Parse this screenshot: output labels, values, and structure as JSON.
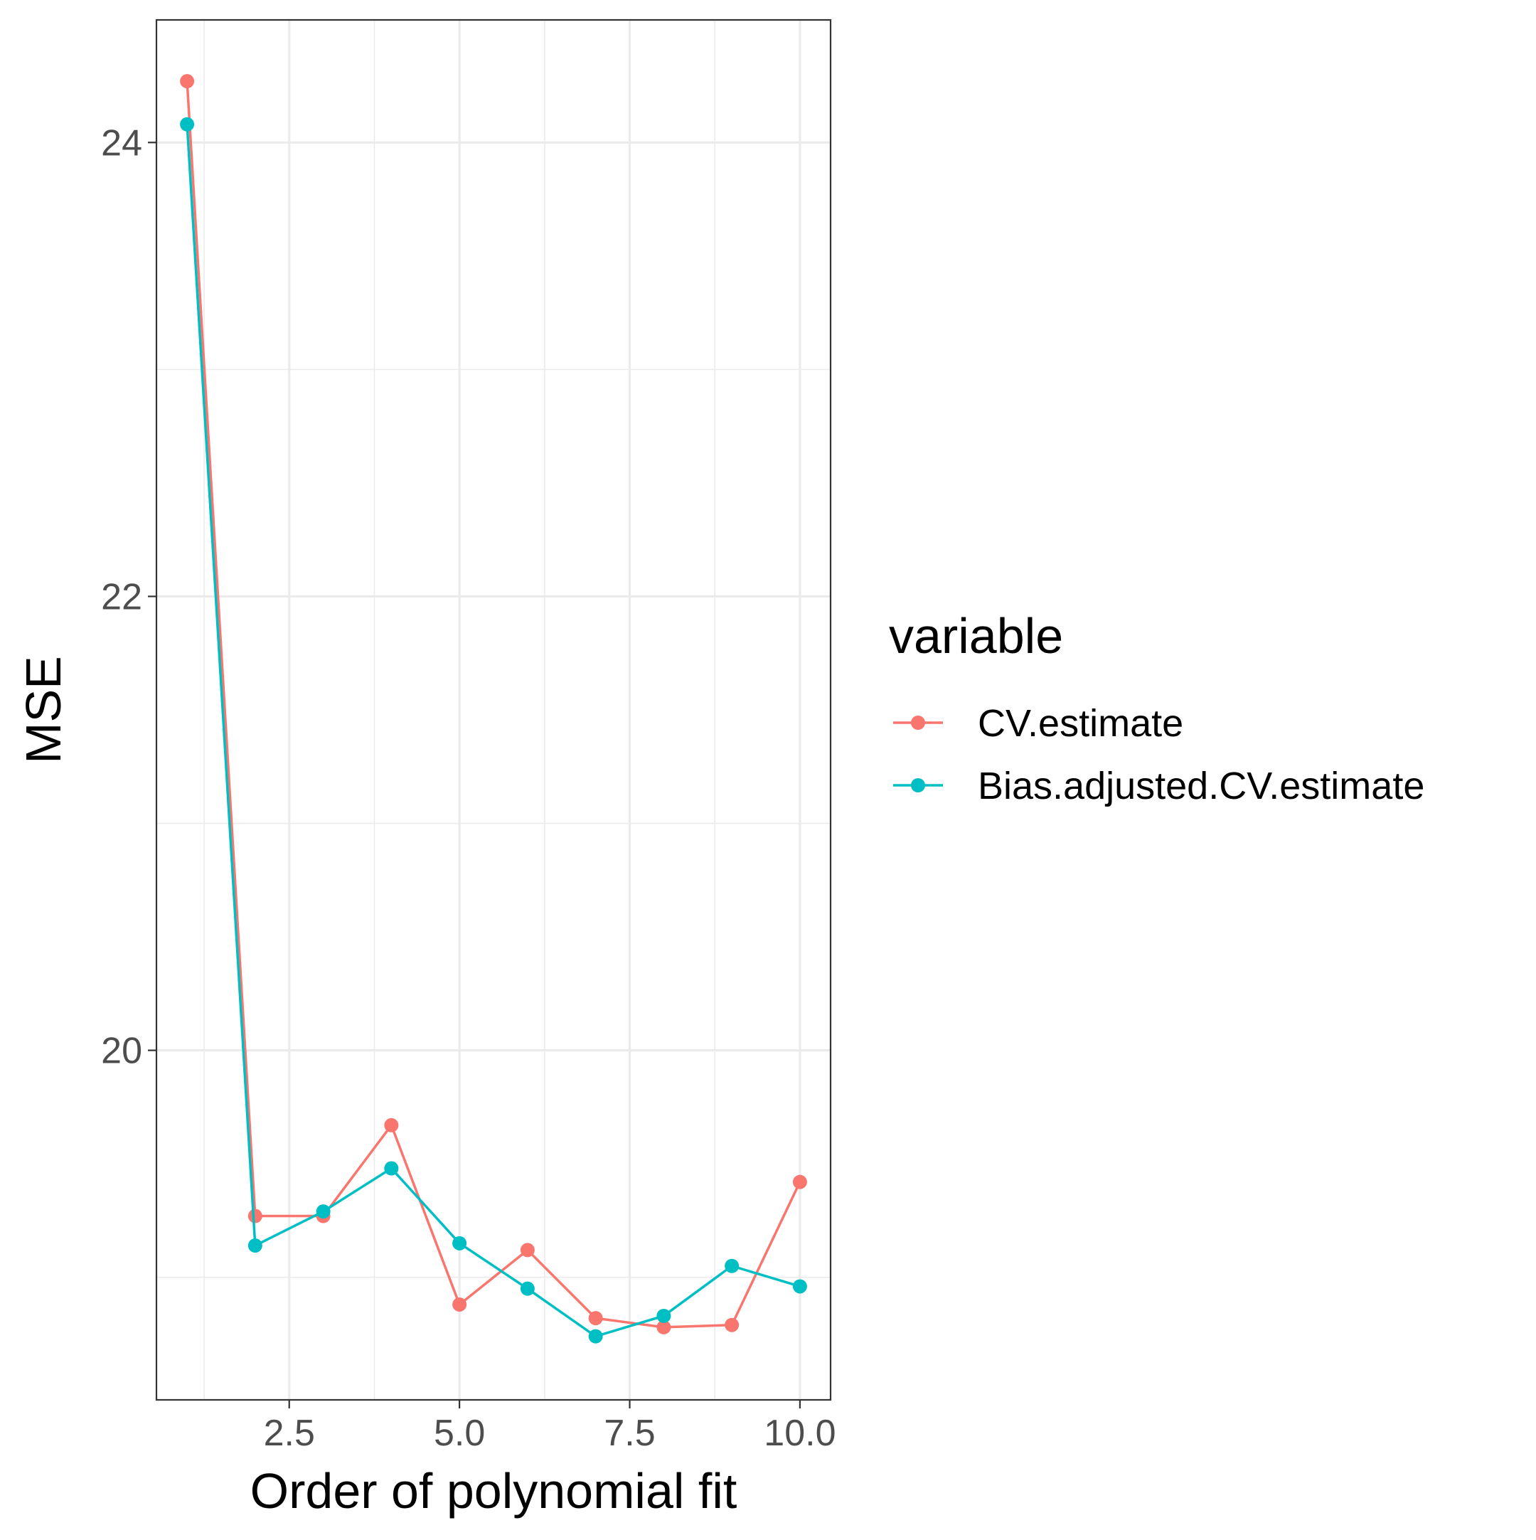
{
  "chart_data": {
    "type": "line",
    "xlabel": "Order of polynomial fit",
    "ylabel": "MSE",
    "xlim": [
      0.55,
      10.45
    ],
    "ylim": [
      18.46,
      24.54
    ],
    "x_major_ticks": [
      2.5,
      5.0,
      7.5,
      10.0
    ],
    "x_tick_labels": [
      "2.5",
      "5.0",
      "7.5",
      "10.0"
    ],
    "x_minor_ticks": [
      1.25,
      3.75,
      6.25,
      8.75
    ],
    "y_major_ticks": [
      20,
      22,
      24
    ],
    "y_tick_labels": [
      "20",
      "22",
      "24"
    ],
    "y_minor_ticks": [
      19,
      21,
      23
    ],
    "grid": true,
    "legend": {
      "title": "variable",
      "position": "right"
    },
    "x": [
      1,
      2,
      3,
      4,
      5,
      6,
      7,
      8,
      9,
      10
    ],
    "series": [
      {
        "name": "CV.estimate",
        "color": "#F8766D",
        "values": [
          24.27,
          19.27,
          19.27,
          19.67,
          18.88,
          19.12,
          18.82,
          18.78,
          18.79,
          19.42
        ]
      },
      {
        "name": "Bias.adjusted.CV.estimate",
        "color": "#00BFC4",
        "values": [
          24.08,
          19.14,
          19.29,
          19.48,
          19.15,
          18.95,
          18.74,
          18.83,
          19.05,
          18.96
        ]
      }
    ]
  }
}
